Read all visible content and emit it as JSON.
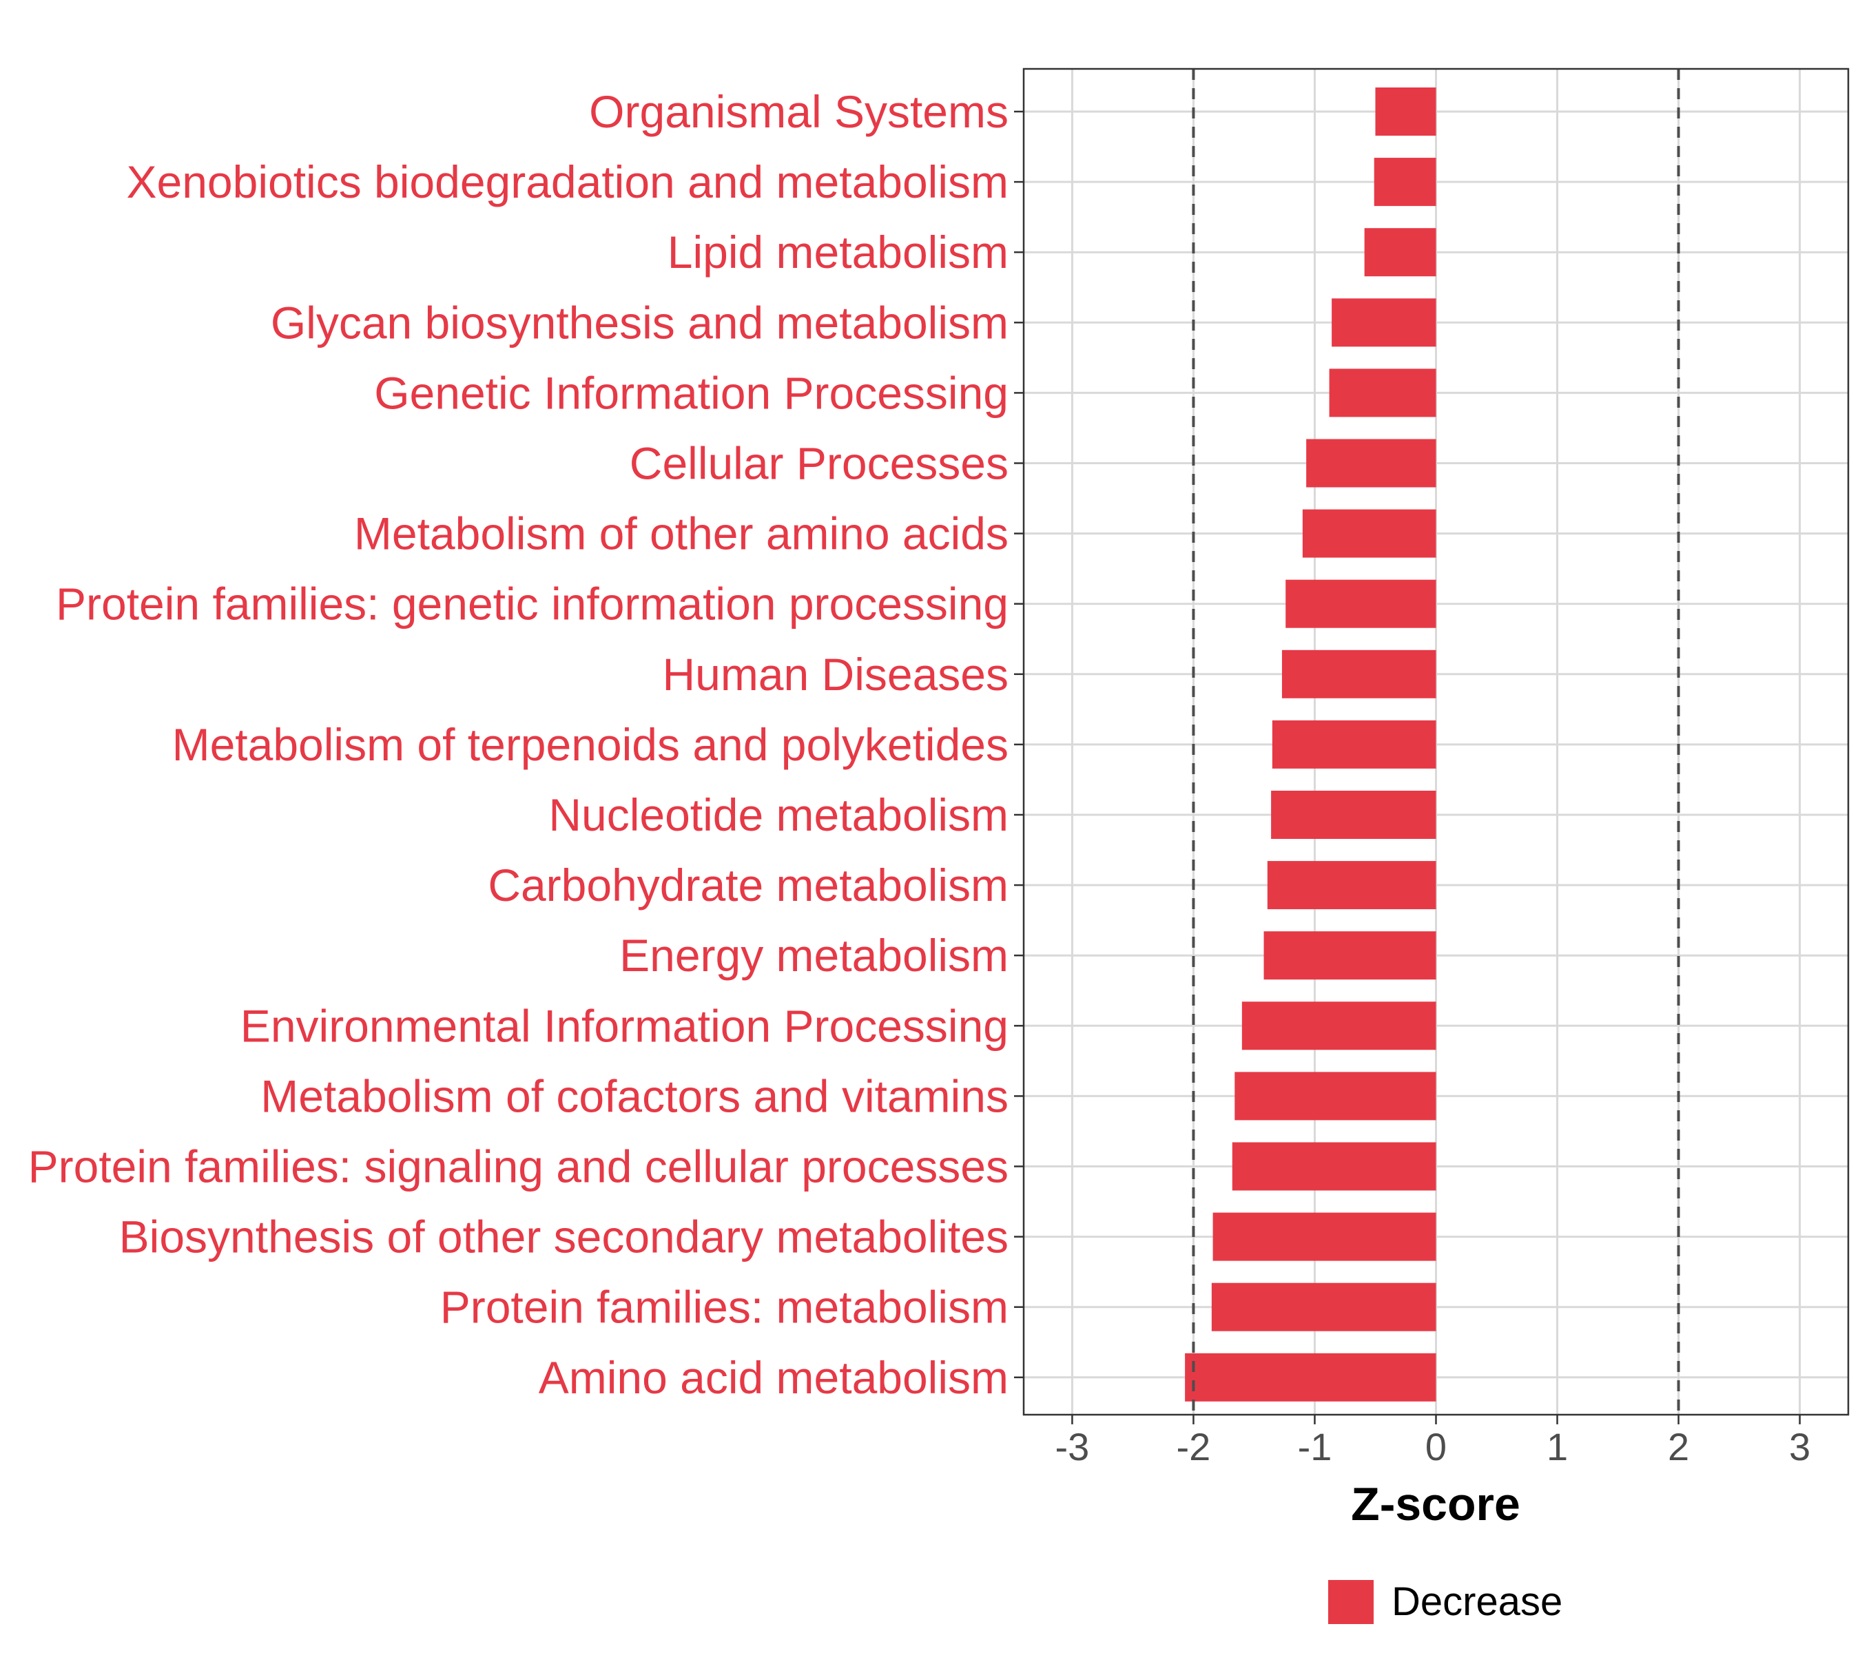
{
  "chart_data": {
    "type": "bar",
    "orientation": "horizontal",
    "categories": [
      "Organismal Systems",
      "Xenobiotics biodegradation and metabolism",
      "Lipid metabolism",
      "Glycan biosynthesis and metabolism",
      "Genetic Information Processing",
      "Cellular Processes",
      "Metabolism of other amino acids",
      "Protein families: genetic information processing",
      "Human Diseases",
      "Metabolism of terpenoids and polyketides",
      "Nucleotide metabolism",
      "Carbohydrate metabolism",
      "Energy metabolism",
      "Environmental Information Processing",
      "Metabolism of cofactors and vitamins",
      "Protein families: signaling and cellular processes",
      "Biosynthesis of other secondary metabolites",
      "Protein families: metabolism",
      "Amino acid metabolism"
    ],
    "values": [
      -0.5,
      -0.51,
      -0.59,
      -0.86,
      -0.88,
      -1.07,
      -1.1,
      -1.24,
      -1.27,
      -1.35,
      -1.36,
      -1.39,
      -1.42,
      -1.6,
      -1.66,
      -1.68,
      -1.84,
      -1.85,
      -2.07
    ],
    "xlabel": "Z-score",
    "xlim": [
      -3.4,
      3.4
    ],
    "xticks": [
      "-3",
      "-2",
      "-1",
      "0",
      "1",
      "2",
      "3"
    ],
    "reference_lines": [
      -2,
      2
    ],
    "grid": true,
    "legend": {
      "position": "bottom",
      "entries": [
        {
          "label": "Decrease",
          "color": "#e63946"
        }
      ]
    },
    "colors": {
      "bar": "#e63946",
      "label": "#e63946",
      "grid": "#d9d9d9",
      "refline": "#4d4d4d"
    }
  }
}
